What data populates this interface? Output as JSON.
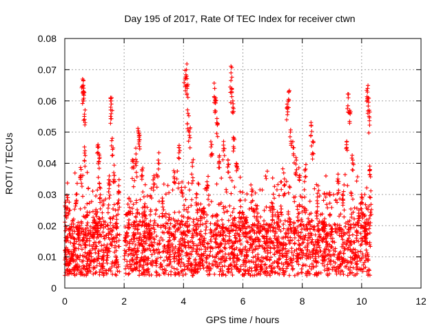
{
  "chart_data": {
    "type": "scatter",
    "title": "Day 195 of 2017, Rate Of TEC Index for receiver ctwn",
    "xlabel": "GPS time / hours",
    "ylabel": "ROTI / TECUs",
    "xlim": [
      0,
      12
    ],
    "ylim": [
      0,
      0.08
    ],
    "xticks": [
      0,
      2,
      4,
      6,
      8,
      10,
      12
    ],
    "xtick_labels": [
      "0",
      "2",
      "4",
      "6",
      "8",
      "10",
      "12"
    ],
    "yticks": [
      0,
      0.01,
      0.02,
      0.03,
      0.04,
      0.05,
      0.06,
      0.07,
      0.08
    ],
    "ytick_labels": [
      "0",
      "0.01",
      "0.02",
      "0.03",
      "0.04",
      "0.05",
      "0.06",
      "0.07",
      "0.08"
    ],
    "grid": true,
    "marker": "+",
    "color": "#ff0000",
    "data_gaps_hours": [
      [
        1.85,
        2.0
      ]
    ],
    "x_data_range": [
      0.0,
      10.3
    ],
    "series": [
      {
        "name": "ROTI",
        "points": [
          [
            0.02,
            0.026
          ],
          [
            0.05,
            0.013
          ],
          [
            0.1,
            0.029
          ],
          [
            0.15,
            0.008
          ],
          [
            0.22,
            0.011
          ],
          [
            0.3,
            0.016
          ],
          [
            0.38,
            0.03
          ],
          [
            0.45,
            0.021
          ],
          [
            0.55,
            0.038
          ],
          [
            0.6,
            0.067
          ],
          [
            0.62,
            0.065
          ],
          [
            0.64,
            0.063
          ],
          [
            0.66,
            0.055
          ],
          [
            0.68,
            0.044
          ],
          [
            0.75,
            0.027
          ],
          [
            0.85,
            0.012
          ],
          [
            0.95,
            0.019
          ],
          [
            1.05,
            0.024
          ],
          [
            1.12,
            0.046
          ],
          [
            1.15,
            0.043
          ],
          [
            1.2,
            0.032
          ],
          [
            1.3,
            0.009
          ],
          [
            1.4,
            0.013
          ],
          [
            1.5,
            0.033
          ],
          [
            1.55,
            0.06
          ],
          [
            1.57,
            0.059
          ],
          [
            1.6,
            0.048
          ],
          [
            1.65,
            0.037
          ],
          [
            1.75,
            0.022
          ],
          [
            1.82,
            0.031
          ],
          [
            2.05,
            0.017
          ],
          [
            2.15,
            0.024
          ],
          [
            2.3,
            0.041
          ],
          [
            2.4,
            0.043
          ],
          [
            2.48,
            0.05
          ],
          [
            2.52,
            0.049
          ],
          [
            2.6,
            0.038
          ],
          [
            2.7,
            0.027
          ],
          [
            2.85,
            0.02
          ],
          [
            3.0,
            0.036
          ],
          [
            3.15,
            0.041
          ],
          [
            3.3,
            0.026
          ],
          [
            3.5,
            0.015
          ],
          [
            3.7,
            0.037
          ],
          [
            3.85,
            0.045
          ],
          [
            3.95,
            0.034
          ],
          [
            4.05,
            0.067
          ],
          [
            4.1,
            0.07
          ],
          [
            4.12,
            0.064
          ],
          [
            4.15,
            0.056
          ],
          [
            4.2,
            0.05
          ],
          [
            4.3,
            0.039
          ],
          [
            4.45,
            0.03
          ],
          [
            4.6,
            0.025
          ],
          [
            4.8,
            0.033
          ],
          [
            4.95,
            0.046
          ],
          [
            5.05,
            0.064
          ],
          [
            5.08,
            0.06
          ],
          [
            5.12,
            0.053
          ],
          [
            5.2,
            0.042
          ],
          [
            5.35,
            0.047
          ],
          [
            5.5,
            0.041
          ],
          [
            5.6,
            0.069
          ],
          [
            5.62,
            0.064
          ],
          [
            5.66,
            0.06
          ],
          [
            5.7,
            0.048
          ],
          [
            5.8,
            0.039
          ],
          [
            5.9,
            0.028
          ],
          [
            6.1,
            0.022
          ],
          [
            6.3,
            0.031
          ],
          [
            6.5,
            0.024
          ],
          [
            6.8,
            0.018
          ],
          [
            7.0,
            0.026
          ],
          [
            7.2,
            0.023
          ],
          [
            7.4,
            0.035
          ],
          [
            7.5,
            0.058
          ],
          [
            7.55,
            0.063
          ],
          [
            7.6,
            0.05
          ],
          [
            7.7,
            0.045
          ],
          [
            7.8,
            0.041
          ],
          [
            7.9,
            0.036
          ],
          [
            8.1,
            0.038
          ],
          [
            8.3,
            0.052
          ],
          [
            8.35,
            0.047
          ],
          [
            8.5,
            0.028
          ],
          [
            8.7,
            0.021
          ],
          [
            9.0,
            0.019
          ],
          [
            9.2,
            0.035
          ],
          [
            9.35,
            0.03
          ],
          [
            9.5,
            0.047
          ],
          [
            9.55,
            0.061
          ],
          [
            9.6,
            0.057
          ],
          [
            9.7,
            0.041
          ],
          [
            9.9,
            0.024
          ],
          [
            10.0,
            0.03
          ],
          [
            10.1,
            0.021
          ],
          [
            10.2,
            0.064
          ],
          [
            10.22,
            0.061
          ],
          [
            10.25,
            0.055
          ],
          [
            10.28,
            0.038
          ],
          [
            10.3,
            0.029
          ]
        ]
      }
    ],
    "dense_band": {
      "description": "dense cloud of points throughout the recorded interval",
      "typical_min": 0.004,
      "typical_max": 0.02
    }
  }
}
